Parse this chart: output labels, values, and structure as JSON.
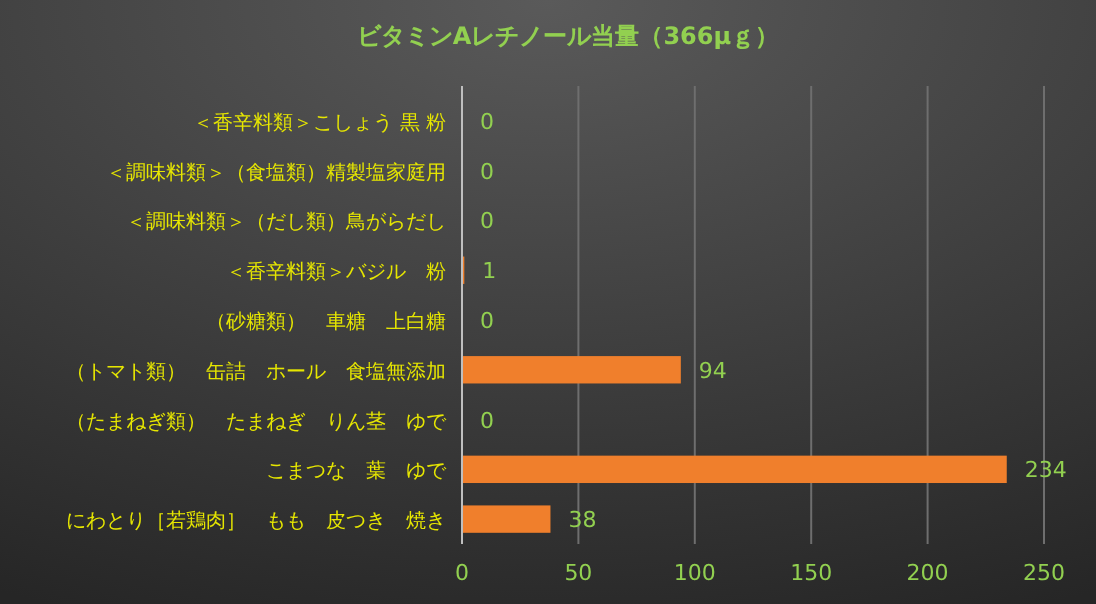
{
  "chart_data": {
    "type": "bar",
    "orientation": "horizontal",
    "title": "ビタミンAレチノール当量（366μｇ）",
    "categories": [
      "＜香辛料類＞こしょう 黒 粉",
      "＜調味料類＞（食塩類）精製塩家庭用",
      "＜調味料類＞（だし類）鳥がらだし",
      "＜香辛料類＞バジル　粉",
      "（砂糖類）　車糖　上白糖",
      "（トマト類）　缶詰　ホール　食塩無添加",
      "（たまねぎ類）　たまねぎ　りん茎　ゆで",
      "こまつな　葉　ゆで",
      "にわとり［若鶏肉］　もも　皮つき　焼き"
    ],
    "values": [
      0,
      0,
      0,
      1,
      0,
      94,
      0,
      234,
      38
    ],
    "color": "#f07f2c",
    "xlim": [
      0,
      250
    ],
    "xticks": [
      0,
      50,
      100,
      150,
      200,
      250
    ],
    "data_labels": true,
    "grid": "x"
  }
}
